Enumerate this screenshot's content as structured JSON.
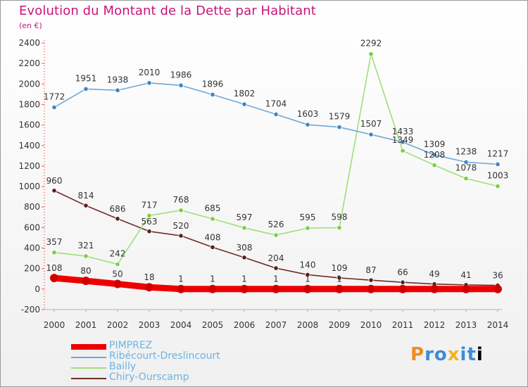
{
  "chart_data": {
    "type": "line",
    "title": "Evolution du Montant de la Dette par Habitant",
    "subtitle": "(en €)",
    "x": [
      "2000",
      "2001",
      "2002",
      "2003",
      "2004",
      "2005",
      "2006",
      "2007",
      "2008",
      "2009",
      "2010",
      "2011",
      "2012",
      "2013",
      "2014"
    ],
    "ylim": [
      -200,
      2400
    ],
    "yticks": [
      -200,
      0,
      200,
      400,
      600,
      800,
      1000,
      1200,
      1400,
      1600,
      1800,
      2000,
      2200,
      2400
    ],
    "grid": false,
    "legend_position": "bottom-left",
    "series": [
      {
        "name": "PIMPREZ",
        "color": "#ee0000",
        "marker": "#cc0000",
        "values": [
          108,
          80,
          50,
          18,
          1,
          1,
          1,
          1,
          1,
          1,
          1,
          1,
          1,
          1,
          1
        ]
      },
      {
        "name": "Ribécourt-Dreslincourt",
        "color": "#6ea8d8",
        "marker": "#3a86c8",
        "values": [
          1772,
          1951,
          1938,
          2010,
          1986,
          1896,
          1802,
          1704,
          1603,
          1579,
          1507,
          1433,
          1309,
          1238,
          1217
        ]
      },
      {
        "name": "Bailly",
        "color": "#9ee07a",
        "marker": "#7ccc3c",
        "values": [
          357,
          321,
          242,
          717,
          768,
          685,
          597,
          526,
          595,
          598,
          2292,
          1349,
          1208,
          1078,
          1003
        ]
      },
      {
        "name": "Chiry-Ourscamp",
        "color": "#6e2c2c",
        "marker": "#5a1e1e",
        "values": [
          960,
          814,
          686,
          563,
          520,
          408,
          308,
          204,
          140,
          109,
          87,
          66,
          49,
          41,
          36
        ]
      }
    ],
    "data_labels_shown": {
      "PIMPREZ": [
        108,
        80,
        50,
        18,
        1,
        1,
        1,
        1,
        1,
        1,
        null,
        null,
        null,
        null,
        null
      ]
    }
  },
  "logo": {
    "letters": [
      "P",
      "r",
      "o",
      "x",
      "i",
      "t",
      "i"
    ]
  }
}
